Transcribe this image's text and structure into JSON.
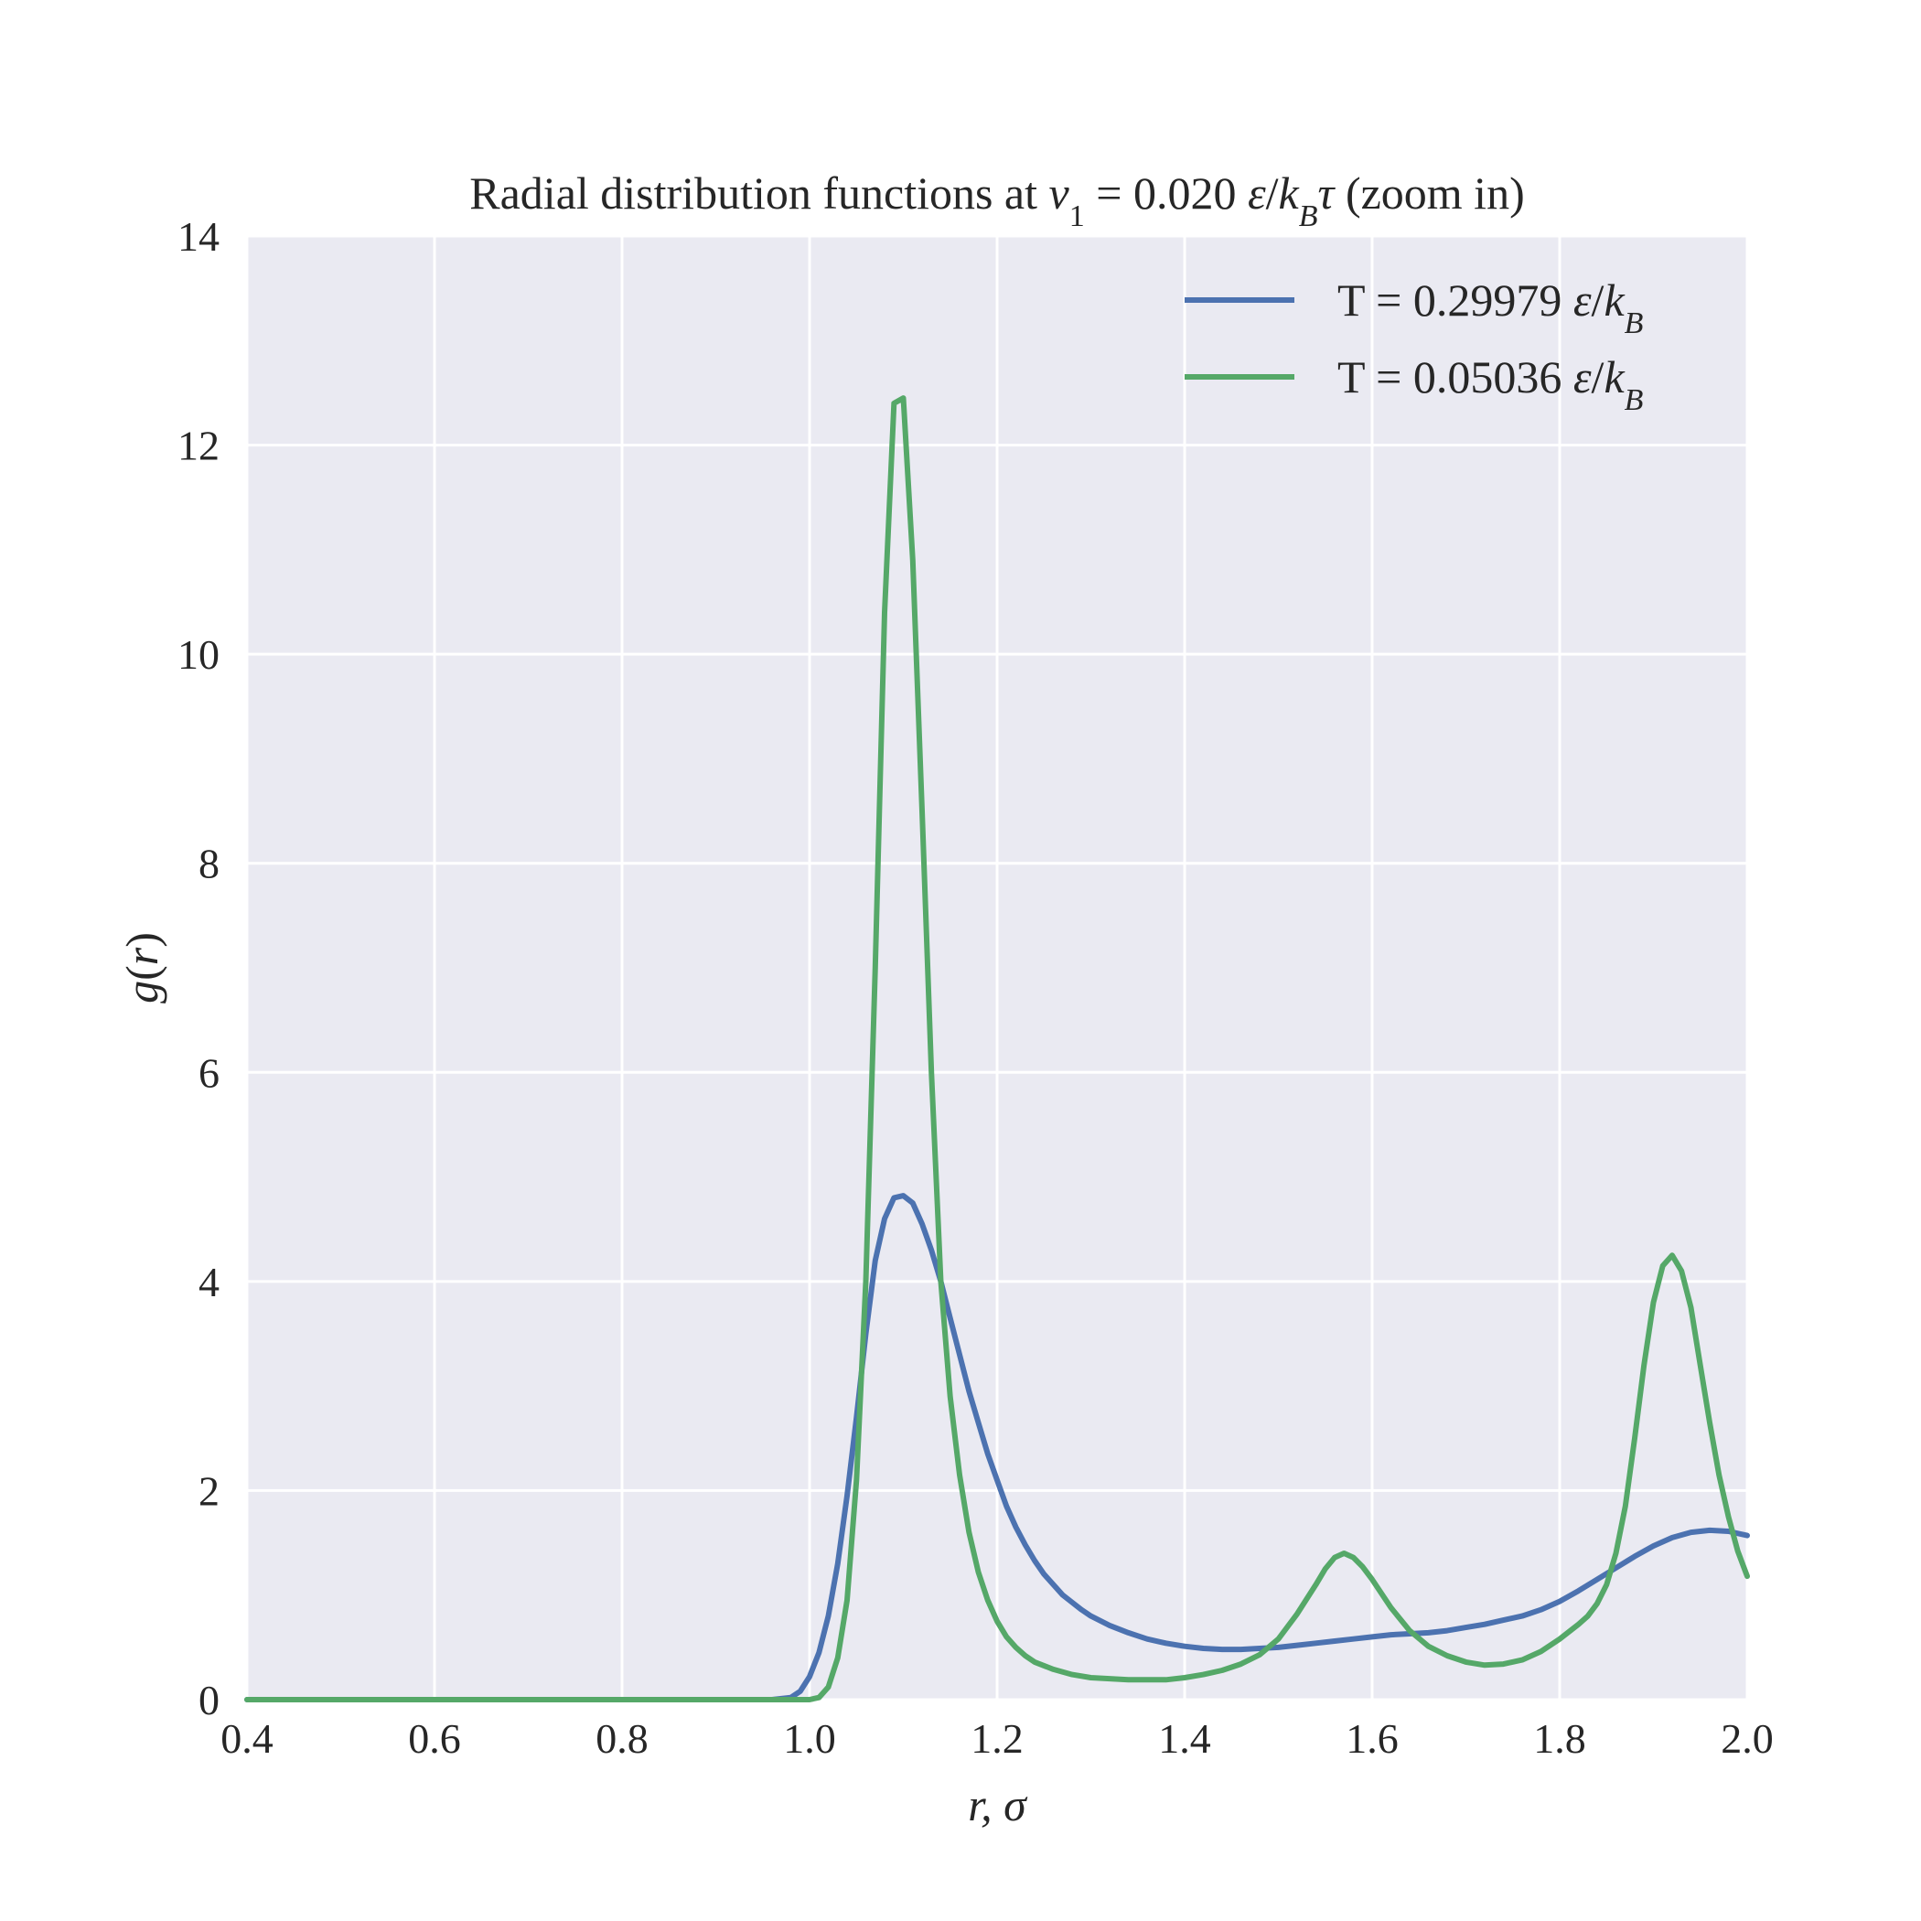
{
  "chart_data": {
    "type": "line",
    "title": {
      "prefix": "Radial distribution functions at ",
      "var": "v",
      "var_sub": "1",
      "equals": " = ",
      "value": "0.020 ",
      "unit_eps": "ε",
      "unit_slash": "/",
      "unit_k": "k",
      "unit_k_sub": "B",
      "unit_tau": "τ",
      "suffix": " (zoom in)"
    },
    "xlabel": "r, σ",
    "ylabel": {
      "g": "g",
      "open": "(",
      "r": "r",
      "close": ")"
    },
    "xlim": [
      0.4,
      2.0
    ],
    "ylim": [
      0,
      14
    ],
    "xticks": [
      "0.4",
      "0.6",
      "0.8",
      "1.0",
      "1.2",
      "1.4",
      "1.6",
      "1.8",
      "2.0"
    ],
    "yticks": [
      "0",
      "2",
      "4",
      "6",
      "8",
      "10",
      "12",
      "14"
    ],
    "grid": true,
    "legend_position": "top-right",
    "colors": {
      "background": "#eaeaf2",
      "grid": "#ffffff",
      "blue": "#4c72b0",
      "green": "#55a868"
    },
    "series": [
      {
        "name": "T = 0.29979 ",
        "name_unit_eps": "ε",
        "name_unit_slash": "/",
        "name_unit_k": "k",
        "name_unit_k_sub": "B",
        "color": "#4c72b0",
        "points": [
          [
            0.4,
            0
          ],
          [
            0.9,
            0
          ],
          [
            0.96,
            0
          ],
          [
            0.98,
            0.02
          ],
          [
            0.99,
            0.08
          ],
          [
            1.0,
            0.22
          ],
          [
            1.01,
            0.45
          ],
          [
            1.02,
            0.8
          ],
          [
            1.03,
            1.3
          ],
          [
            1.04,
            1.95
          ],
          [
            1.05,
            2.7
          ],
          [
            1.06,
            3.5
          ],
          [
            1.07,
            4.2
          ],
          [
            1.08,
            4.6
          ],
          [
            1.09,
            4.8
          ],
          [
            1.1,
            4.82
          ],
          [
            1.11,
            4.75
          ],
          [
            1.12,
            4.55
          ],
          [
            1.13,
            4.3
          ],
          [
            1.14,
            4.0
          ],
          [
            1.15,
            3.65
          ],
          [
            1.16,
            3.3
          ],
          [
            1.17,
            2.95
          ],
          [
            1.18,
            2.65
          ],
          [
            1.19,
            2.35
          ],
          [
            1.2,
            2.1
          ],
          [
            1.21,
            1.85
          ],
          [
            1.22,
            1.65
          ],
          [
            1.23,
            1.48
          ],
          [
            1.24,
            1.33
          ],
          [
            1.25,
            1.2
          ],
          [
            1.26,
            1.1
          ],
          [
            1.27,
            1.0
          ],
          [
            1.28,
            0.93
          ],
          [
            1.29,
            0.86
          ],
          [
            1.3,
            0.8
          ],
          [
            1.32,
            0.71
          ],
          [
            1.34,
            0.64
          ],
          [
            1.36,
            0.58
          ],
          [
            1.38,
            0.54
          ],
          [
            1.4,
            0.51
          ],
          [
            1.42,
            0.49
          ],
          [
            1.44,
            0.48
          ],
          [
            1.46,
            0.48
          ],
          [
            1.48,
            0.49
          ],
          [
            1.5,
            0.5
          ],
          [
            1.52,
            0.52
          ],
          [
            1.54,
            0.54
          ],
          [
            1.56,
            0.56
          ],
          [
            1.58,
            0.58
          ],
          [
            1.6,
            0.6
          ],
          [
            1.62,
            0.62
          ],
          [
            1.64,
            0.63
          ],
          [
            1.66,
            0.64
          ],
          [
            1.68,
            0.66
          ],
          [
            1.7,
            0.69
          ],
          [
            1.72,
            0.72
          ],
          [
            1.74,
            0.76
          ],
          [
            1.76,
            0.8
          ],
          [
            1.78,
            0.86
          ],
          [
            1.8,
            0.94
          ],
          [
            1.82,
            1.04
          ],
          [
            1.84,
            1.15
          ],
          [
            1.86,
            1.26
          ],
          [
            1.88,
            1.37
          ],
          [
            1.9,
            1.47
          ],
          [
            1.92,
            1.55
          ],
          [
            1.94,
            1.6
          ],
          [
            1.96,
            1.62
          ],
          [
            1.98,
            1.61
          ],
          [
            2.0,
            1.57
          ]
        ]
      },
      {
        "name": "T = 0.05036 ",
        "name_unit_eps": "ε",
        "name_unit_slash": "/",
        "name_unit_k": "k",
        "name_unit_k_sub": "B",
        "color": "#55a868",
        "points": [
          [
            0.4,
            0
          ],
          [
            0.95,
            0
          ],
          [
            1.0,
            0
          ],
          [
            1.01,
            0.02
          ],
          [
            1.02,
            0.12
          ],
          [
            1.03,
            0.4
          ],
          [
            1.04,
            0.95
          ],
          [
            1.05,
            2.1
          ],
          [
            1.06,
            4.0
          ],
          [
            1.07,
            7.0
          ],
          [
            1.08,
            10.4
          ],
          [
            1.09,
            12.4
          ],
          [
            1.1,
            12.45
          ],
          [
            1.11,
            10.9
          ],
          [
            1.12,
            8.5
          ],
          [
            1.13,
            6.0
          ],
          [
            1.14,
            4.0
          ],
          [
            1.15,
            2.9
          ],
          [
            1.16,
            2.15
          ],
          [
            1.17,
            1.6
          ],
          [
            1.18,
            1.22
          ],
          [
            1.19,
            0.95
          ],
          [
            1.2,
            0.75
          ],
          [
            1.21,
            0.6
          ],
          [
            1.22,
            0.5
          ],
          [
            1.23,
            0.42
          ],
          [
            1.24,
            0.36
          ],
          [
            1.26,
            0.29
          ],
          [
            1.28,
            0.24
          ],
          [
            1.3,
            0.21
          ],
          [
            1.32,
            0.2
          ],
          [
            1.34,
            0.19
          ],
          [
            1.36,
            0.19
          ],
          [
            1.38,
            0.19
          ],
          [
            1.4,
            0.21
          ],
          [
            1.42,
            0.24
          ],
          [
            1.44,
            0.28
          ],
          [
            1.46,
            0.34
          ],
          [
            1.48,
            0.43
          ],
          [
            1.5,
            0.58
          ],
          [
            1.52,
            0.82
          ],
          [
            1.54,
            1.1
          ],
          [
            1.55,
            1.25
          ],
          [
            1.56,
            1.36
          ],
          [
            1.57,
            1.4
          ],
          [
            1.58,
            1.36
          ],
          [
            1.59,
            1.27
          ],
          [
            1.6,
            1.15
          ],
          [
            1.62,
            0.88
          ],
          [
            1.64,
            0.66
          ],
          [
            1.66,
            0.51
          ],
          [
            1.68,
            0.42
          ],
          [
            1.7,
            0.36
          ],
          [
            1.72,
            0.33
          ],
          [
            1.74,
            0.34
          ],
          [
            1.76,
            0.38
          ],
          [
            1.78,
            0.46
          ],
          [
            1.8,
            0.58
          ],
          [
            1.82,
            0.72
          ],
          [
            1.83,
            0.8
          ],
          [
            1.84,
            0.92
          ],
          [
            1.85,
            1.1
          ],
          [
            1.86,
            1.4
          ],
          [
            1.87,
            1.85
          ],
          [
            1.88,
            2.5
          ],
          [
            1.89,
            3.2
          ],
          [
            1.9,
            3.8
          ],
          [
            1.91,
            4.15
          ],
          [
            1.92,
            4.25
          ],
          [
            1.93,
            4.1
          ],
          [
            1.94,
            3.75
          ],
          [
            1.95,
            3.2
          ],
          [
            1.96,
            2.65
          ],
          [
            1.97,
            2.15
          ],
          [
            1.98,
            1.75
          ],
          [
            1.99,
            1.42
          ],
          [
            2.0,
            1.18
          ]
        ]
      }
    ]
  }
}
